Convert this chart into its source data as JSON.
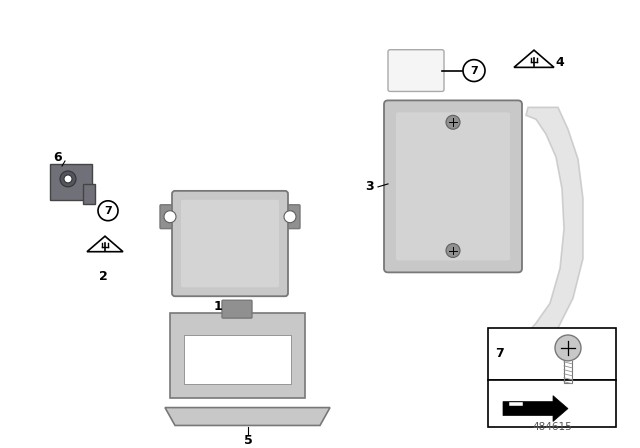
{
  "bg_color": "#ffffff",
  "fig_width": 6.4,
  "fig_height": 4.48,
  "dpi": 100,
  "diagram_id": "484615",
  "gray1": "#b0b0b0",
  "gray2": "#c8c8c8",
  "gray3": "#d8d8d8",
  "gray4": "#909090",
  "gray5": "#787878",
  "dark_gray": "#606060",
  "ghost_gray": "#c0c0c0",
  "clip_gray": "#707078",
  "label_fs": 9,
  "circle_fs": 8
}
